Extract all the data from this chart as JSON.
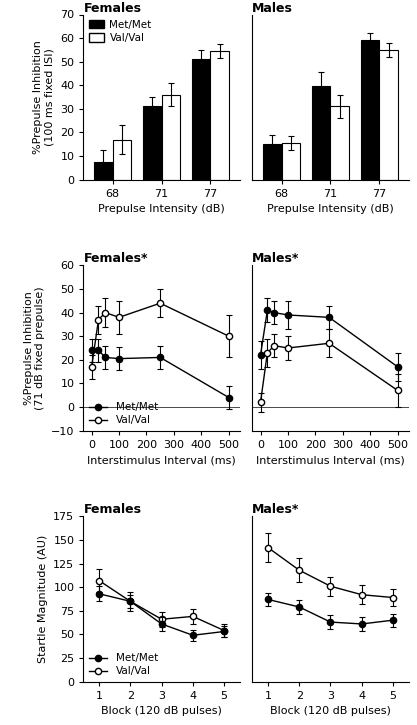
{
  "row1": {
    "females": {
      "title": "Females",
      "categories": [
        68,
        71,
        77
      ],
      "met_values": [
        7.5,
        31,
        51
      ],
      "met_errors": [
        5,
        4,
        4
      ],
      "val_values": [
        17,
        36,
        54.5
      ],
      "val_errors": [
        6,
        5,
        3
      ],
      "ylabel": "%Prepulse Inhibition\n(100 ms fixed ISI)",
      "ylim": [
        0,
        70
      ],
      "yticks": [
        0,
        10,
        20,
        30,
        40,
        50,
        60,
        70
      ],
      "xlabel": "Prepulse Intensity (dB)"
    },
    "males": {
      "title": "Males",
      "categories": [
        68,
        71,
        77
      ],
      "met_values": [
        15,
        39.5,
        59
      ],
      "met_errors": [
        4,
        6,
        3
      ],
      "val_values": [
        15.5,
        31,
        55
      ],
      "val_errors": [
        3,
        5,
        3
      ],
      "ylabel": "",
      "ylim": [
        0,
        70
      ],
      "yticks": [
        0,
        10,
        20,
        30,
        40,
        50,
        60,
        70
      ],
      "xlabel": "Prepulse Intensity (dB)"
    }
  },
  "row2": {
    "females": {
      "title": "Females*",
      "x": [
        0,
        25,
        50,
        100,
        250,
        500
      ],
      "met_values": [
        24,
        24,
        21,
        20.5,
        21,
        4
      ],
      "met_errors": [
        5,
        5,
        5,
        5,
        5,
        5
      ],
      "val_values": [
        17,
        37,
        40,
        38,
        44,
        30
      ],
      "val_errors": [
        5,
        6,
        6,
        7,
        6,
        9
      ],
      "ylabel": "%Prepulse Inhibition\n(71 dB fixed prepulse)",
      "ylim": [
        -10,
        60
      ],
      "yticks": [
        -10,
        0,
        10,
        20,
        30,
        40,
        50,
        60
      ],
      "xlabel": "Interstimulus Interval (ms)"
    },
    "males": {
      "title": "Males*",
      "x": [
        0,
        25,
        50,
        100,
        250,
        500
      ],
      "met_values": [
        22,
        41,
        40,
        39,
        38,
        17
      ],
      "met_errors": [
        6,
        5,
        5,
        6,
        5,
        6
      ],
      "val_values": [
        2,
        23,
        26,
        25,
        27,
        7
      ],
      "val_errors": [
        4,
        6,
        5,
        5,
        6,
        7
      ],
      "ylabel": "",
      "ylim": [
        -10,
        60
      ],
      "yticks": [
        -10,
        0,
        10,
        20,
        30,
        40,
        50,
        60
      ],
      "xlabel": "Interstimulus Interval (ms)"
    }
  },
  "row3": {
    "females": {
      "title": "Females",
      "x": [
        1,
        2,
        3,
        4,
        5
      ],
      "met_values": [
        93,
        85,
        61,
        49,
        53
      ],
      "met_errors": [
        8,
        7,
        7,
        6,
        6
      ],
      "val_values": [
        107,
        85,
        66,
        69,
        54
      ],
      "val_errors": [
        12,
        10,
        8,
        8,
        7
      ],
      "ylabel": "Startle Magnitude (AU)",
      "ylim": [
        0,
        175
      ],
      "yticks": [
        0,
        25,
        50,
        75,
        100,
        125,
        150,
        175
      ],
      "xlabel": "Block (120 dB pulses)"
    },
    "males": {
      "title": "Males*",
      "x": [
        1,
        2,
        3,
        4,
        5
      ],
      "met_values": [
        87,
        79,
        63,
        61,
        65
      ],
      "met_errors": [
        7,
        7,
        7,
        7,
        7
      ],
      "val_values": [
        142,
        118,
        101,
        92,
        89
      ],
      "val_errors": [
        15,
        13,
        10,
        10,
        9
      ],
      "ylabel": "",
      "ylim": [
        0,
        175
      ],
      "yticks": [
        0,
        25,
        50,
        75,
        100,
        125,
        150,
        175
      ],
      "xlabel": "Block (120 dB pulses)"
    }
  },
  "legend_row1": {
    "met_label": "Met/Met",
    "val_label": "Val/Val"
  },
  "legend_row2": {
    "met_label": "Met/Met",
    "val_label": "Val/Val"
  },
  "legend_row3": {
    "met_label": "Met/Met",
    "val_label": "Val/Val"
  },
  "bar_met_color": "black",
  "bar_val_color": "white"
}
